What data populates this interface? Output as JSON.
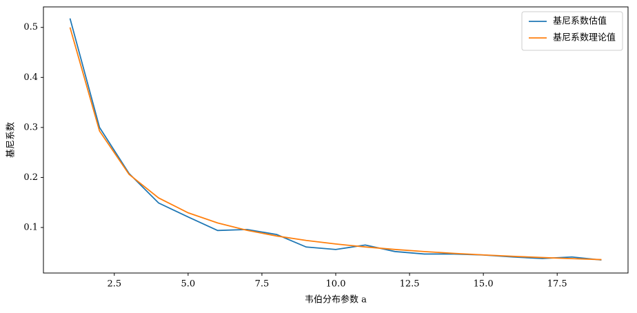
{
  "chart_data": {
    "type": "line",
    "x_label": "韦伯分布参数 a",
    "y_label": "基尼系数",
    "x": [
      1,
      2,
      3,
      4,
      5,
      6,
      7,
      8,
      9,
      10,
      11,
      12,
      13,
      14,
      15,
      16,
      17,
      18,
      19
    ],
    "series": [
      {
        "name": "基尼系数估值",
        "color": "#1f77b4",
        "values": [
          0.518,
          0.3,
          0.208,
          0.149,
          0.121,
          0.094,
          0.096,
          0.086,
          0.061,
          0.056,
          0.065,
          0.052,
          0.047,
          0.047,
          0.045,
          0.041,
          0.038,
          0.041,
          0.035
        ]
      },
      {
        "name": "基尼系数理论值",
        "color": "#ff7f0e",
        "values": [
          0.5,
          0.2929,
          0.2063,
          0.1591,
          0.1294,
          0.1091,
          0.0943,
          0.083,
          0.0741,
          0.067,
          0.0611,
          0.0561,
          0.0519,
          0.0483,
          0.0452,
          0.0424,
          0.0399,
          0.0378,
          0.0358
        ]
      }
    ],
    "xlim": [
      0.1,
      19.9
    ],
    "xticks": [
      2.5,
      {
        "value": 5,
        "label": "5.0"
      },
      7.5,
      {
        "value": 10,
        "label": "10.0"
      },
      12.5,
      {
        "value": 15,
        "label": "15.0"
      },
      17.5
    ],
    "ylim": [
      0.009,
      0.541
    ],
    "yticks": [
      0.1,
      0.2,
      0.3,
      0.4,
      0.5
    ],
    "legend": "upper right"
  }
}
